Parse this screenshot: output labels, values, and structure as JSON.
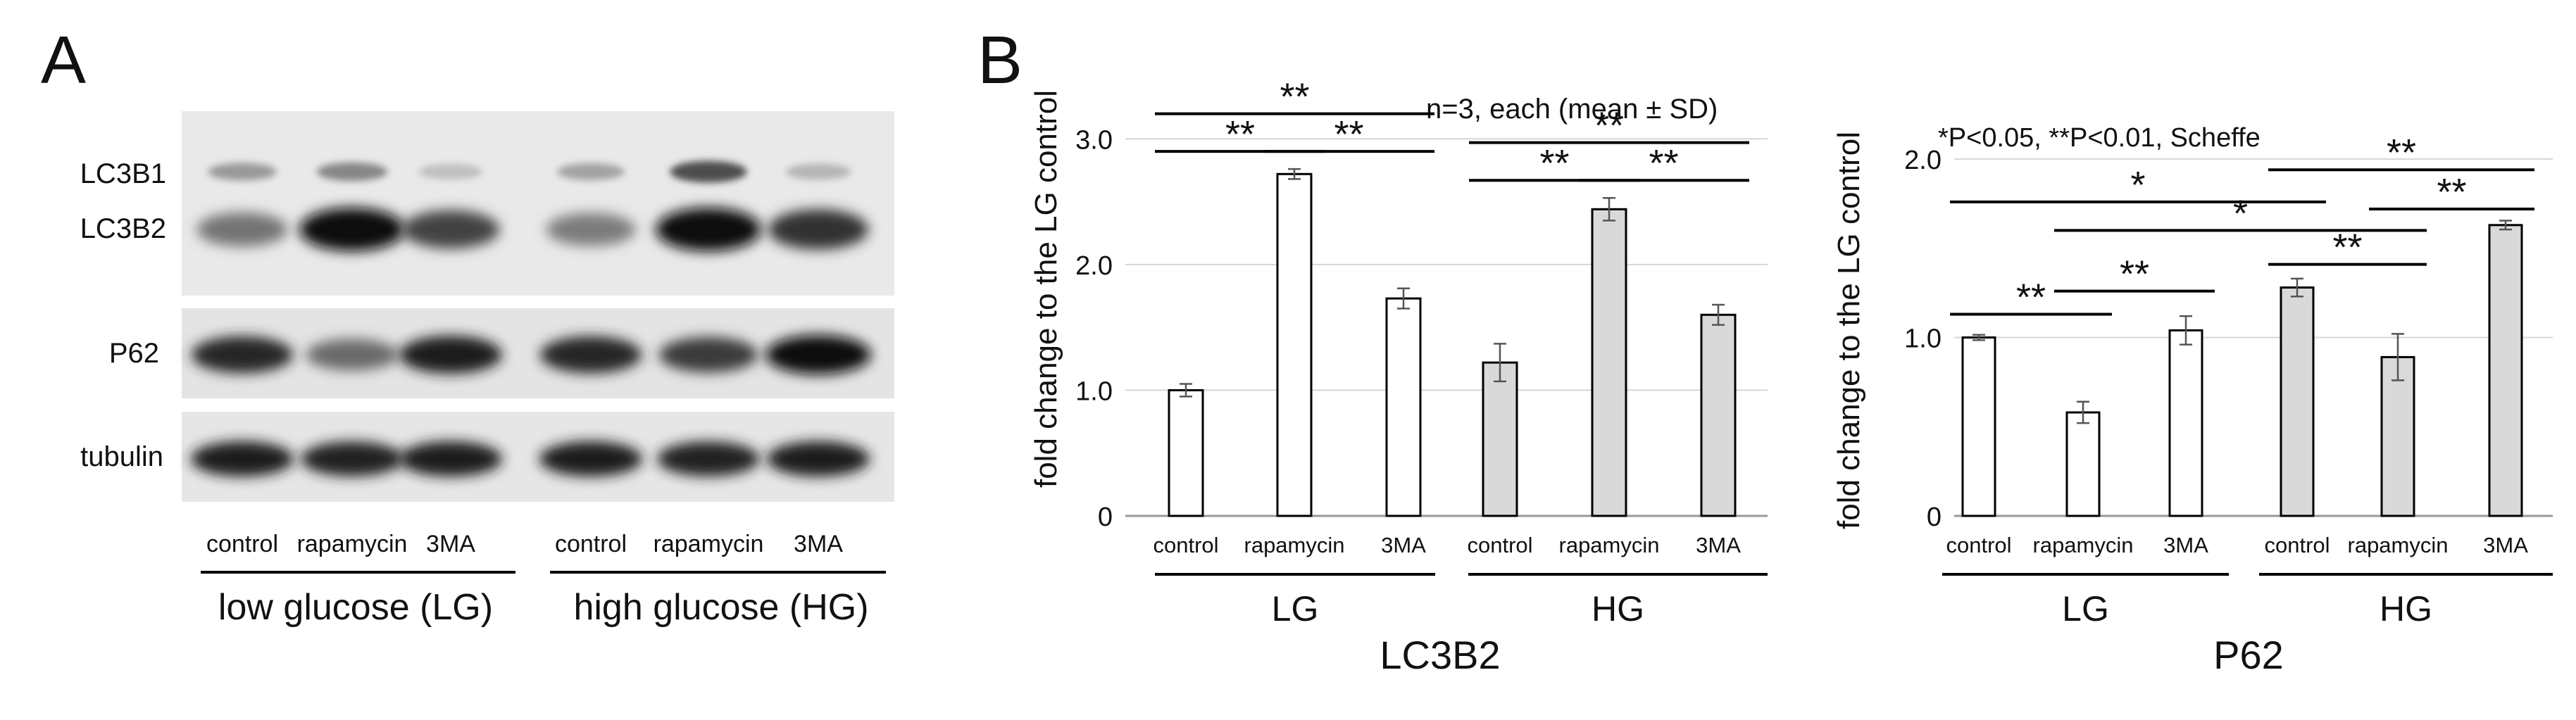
{
  "panel_a": {
    "label": "A",
    "band_labels": [
      "LC3B1",
      "LC3B2",
      "P62",
      "tubulin"
    ],
    "lane_labels": [
      "control",
      "rapamycin",
      "3MA",
      "control",
      "rapamycin",
      "3MA"
    ],
    "group_labels": [
      "low glucose (LG)",
      "high glucose (HG)"
    ],
    "blots": {
      "lc3b1_intensity": [
        0.25,
        0.35,
        0.05,
        0.2,
        0.65,
        0.1
      ],
      "lc3b2_intensity": [
        0.45,
        1.0,
        0.7,
        0.4,
        1.0,
        0.8
      ],
      "p62_intensity": [
        0.85,
        0.5,
        0.9,
        0.85,
        0.75,
        1.0
      ],
      "tubulin_intensity": [
        0.9,
        0.88,
        0.9,
        0.9,
        0.88,
        0.9
      ]
    }
  },
  "panel_b": {
    "label": "B",
    "note_n": "n=3, each (mean ± SD)",
    "note_stats": "*P<0.05, **P<0.01, Scheffe"
  },
  "chart_data": [
    {
      "type": "bar",
      "title": "LC3B2",
      "ylabel": "fold change to the LG control",
      "ylim": [
        0,
        3.5
      ],
      "yticks": [
        0,
        1.0,
        2.0,
        3.0
      ],
      "ytick_labels": [
        "0",
        "1.0",
        "2.0",
        "3.0"
      ],
      "categories": [
        "control",
        "rapamycin",
        "3MA",
        "control",
        "rapamycin",
        "3MA"
      ],
      "groups": [
        "LG",
        "HG"
      ],
      "values": [
        1.0,
        2.72,
        1.73,
        1.22,
        2.44,
        1.6
      ],
      "errors": [
        0.05,
        0.04,
        0.08,
        0.15,
        0.09,
        0.08
      ],
      "fills": [
        "#ffffff",
        "#ffffff",
        "#ffffff",
        "#d9d9d9",
        "#d9d9d9",
        "#d9d9d9"
      ],
      "significance": [
        {
          "from": 0,
          "to": 1,
          "label": "**",
          "y": 2.9
        },
        {
          "from": 1,
          "to": 2,
          "label": "**",
          "y": 2.9
        },
        {
          "from": 0,
          "to": 2,
          "label": "**",
          "y": 3.2
        },
        {
          "from": 3,
          "to": 4,
          "label": "**",
          "y": 2.67
        },
        {
          "from": 4,
          "to": 5,
          "label": "**",
          "y": 2.67
        },
        {
          "from": 3,
          "to": 5,
          "label": "**",
          "y": 2.97
        }
      ]
    },
    {
      "type": "bar",
      "title": "P62",
      "ylabel": "fold change to the LG control",
      "ylim": [
        0,
        2.0
      ],
      "yticks": [
        0,
        1.0,
        2.0
      ],
      "ytick_labels": [
        "0",
        "1.0",
        "2.0"
      ],
      "categories": [
        "control",
        "rapamycin",
        "3MA",
        "control",
        "rapamycin",
        "3MA"
      ],
      "groups": [
        "LG",
        "HG"
      ],
      "values": [
        1.0,
        0.58,
        1.04,
        1.28,
        0.89,
        1.63
      ],
      "errors": [
        0.015,
        0.06,
        0.08,
        0.05,
        0.13,
        0.025
      ],
      "fills": [
        "#ffffff",
        "#ffffff",
        "#ffffff",
        "#d9d9d9",
        "#d9d9d9",
        "#d9d9d9"
      ],
      "significance": [
        {
          "from": 0,
          "to": 1,
          "label": "**",
          "y": 1.13
        },
        {
          "from": 1,
          "to": 2,
          "label": "**",
          "y": 1.26
        },
        {
          "from": 3,
          "to": 4,
          "label": "**",
          "y": 1.41
        },
        {
          "from": 4,
          "to": 5,
          "label": "**",
          "y": 1.72
        },
        {
          "from": 0,
          "to": 3,
          "label": "*",
          "y": 1.76
        },
        {
          "from": 1,
          "to": 4,
          "label": "*",
          "y": 1.6
        },
        {
          "from": 3,
          "to": 5,
          "label": "**",
          "y": 1.94
        }
      ]
    }
  ]
}
